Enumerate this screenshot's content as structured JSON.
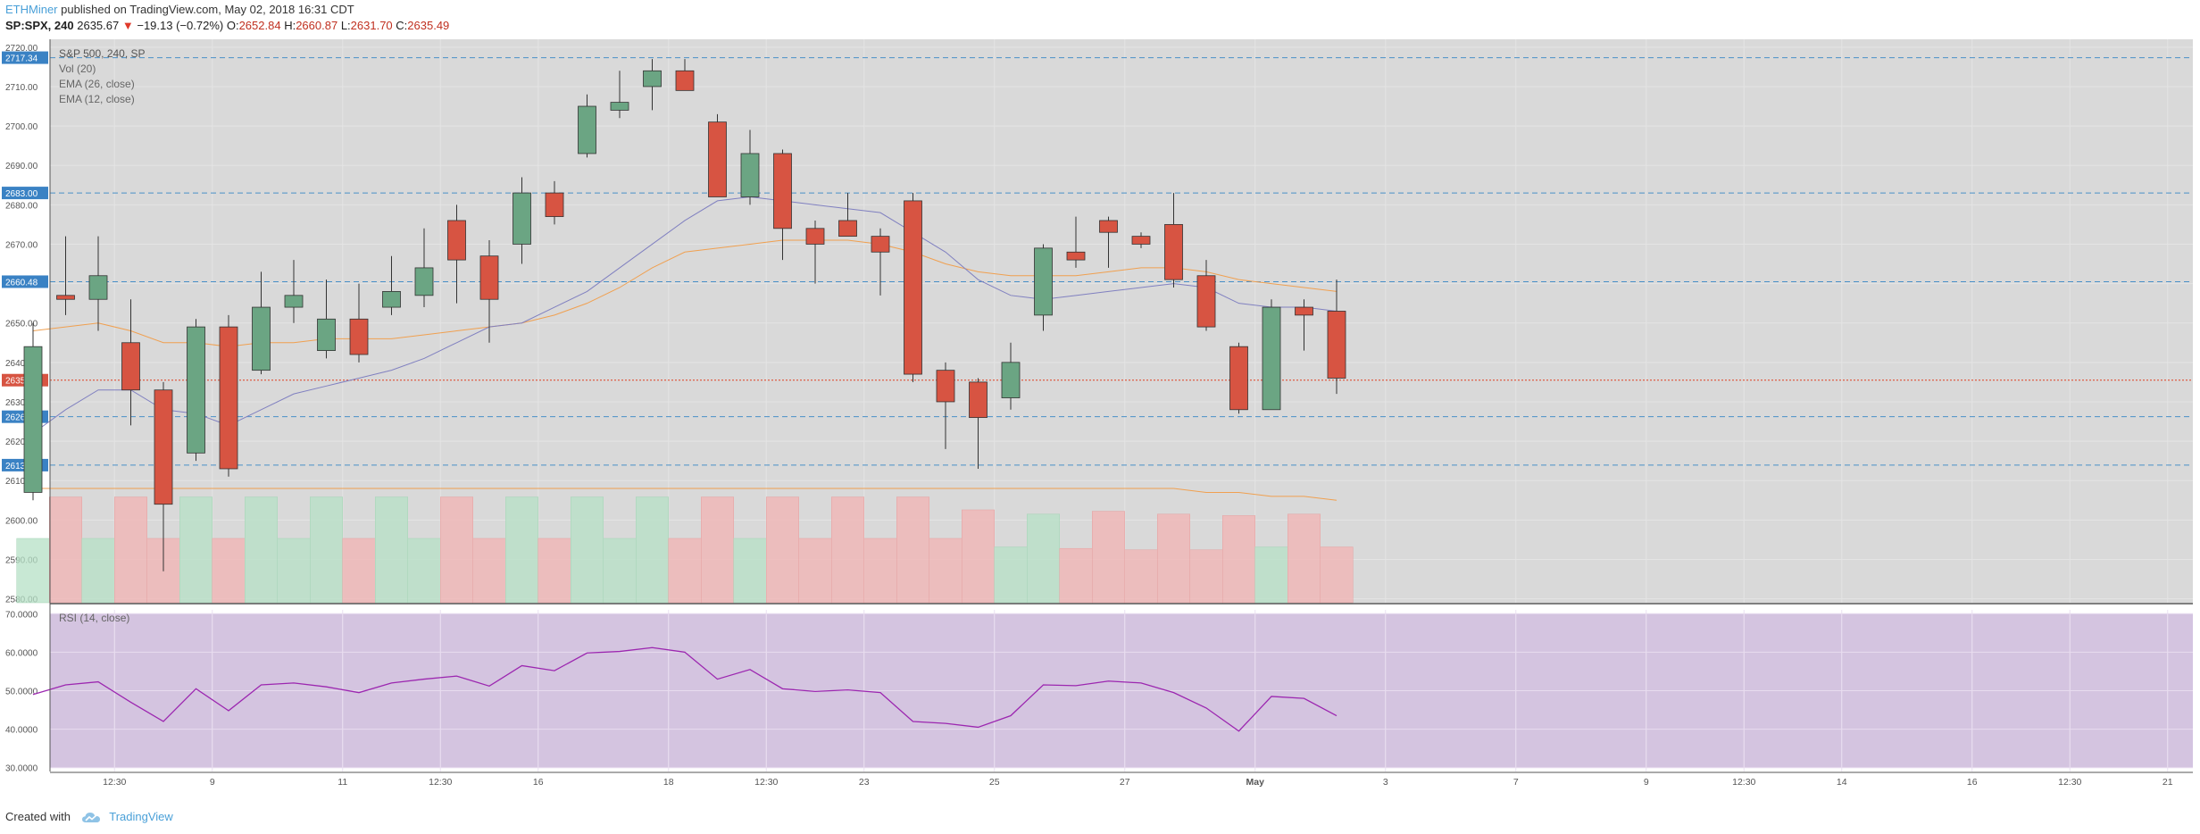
{
  "header": {
    "author": "ETHMiner",
    "published_text": "published on TradingView.com, May 02, 2018 16:31 CDT",
    "symbol": "SP:SPX, 240",
    "last": "2635.67",
    "change": "−19.13 (−0.72%)",
    "o_label": "O:",
    "o": "2652.84",
    "h_label": "H:",
    "h": "2660.87",
    "l_label": "L:",
    "l": "2631.70",
    "c_label": "C:",
    "c": "2635.49"
  },
  "legend": {
    "title": "S&P 500, 240, SP",
    "items": [
      "Vol (20)",
      "EMA (26, close)",
      "EMA (12, close)"
    ]
  },
  "rsi_label": "RSI (14, close)",
  "footer": {
    "created": "Created with",
    "brand": "TradingView"
  },
  "colors": {
    "up": "#6ba583",
    "down": "#d75442",
    "bg": "#d9d9d9",
    "rsi_bg": "#d4c4e0",
    "rsi_line": "#9c27b0",
    "ema26": "#f0a050",
    "ema12": "#8080c0",
    "hline": "#4a90c8",
    "price_line": "#e04020",
    "axis_label_bg": "#3a82c4"
  },
  "chart_data": {
    "type": "candlestick",
    "title": "S&P 500, 240, SP",
    "y_axis_ticks": [
      "2580.00",
      "2590.00",
      "2600.00",
      "2610.00",
      "2620.00",
      "2630.00",
      "2640.00",
      "2650.00",
      "2660.00",
      "2670.00",
      "2680.00",
      "2690.00",
      "2700.00",
      "2710.00",
      "2720.00"
    ],
    "ylim": [
      2579,
      2722
    ],
    "x_ticks": [
      {
        "label": "12:30",
        "bar": 2.5
      },
      {
        "label": "9",
        "bar": 5.5
      },
      {
        "label": "11",
        "bar": 9.5
      },
      {
        "label": "12:30",
        "bar": 12.5
      },
      {
        "label": "16",
        "bar": 15.5
      },
      {
        "label": "18",
        "bar": 19.5
      },
      {
        "label": "12:30",
        "bar": 22.5
      },
      {
        "label": "23",
        "bar": 25.5
      },
      {
        "label": "25",
        "bar": 29.5
      },
      {
        "label": "27",
        "bar": 33.5
      },
      {
        "label": "May",
        "bar": 37.5
      },
      {
        "label": "3",
        "bar": 41.5
      },
      {
        "label": "7",
        "bar": 45.5
      },
      {
        "label": "9",
        "bar": 49.5
      },
      {
        "label": "12:30",
        "bar": 52.5
      },
      {
        "label": "14",
        "bar": 55.5
      },
      {
        "label": "16",
        "bar": 59.5
      },
      {
        "label": "12:30",
        "bar": 62.5
      },
      {
        "label": "21",
        "bar": 65.5
      }
    ],
    "candles": [
      {
        "o": 2607,
        "h": 2650,
        "l": 2605,
        "c": 2644
      },
      {
        "o": 2657,
        "h": 2672,
        "l": 2652,
        "c": 2656
      },
      {
        "o": 2656,
        "h": 2672,
        "l": 2648,
        "c": 2662
      },
      {
        "o": 2645,
        "h": 2656,
        "l": 2624,
        "c": 2633
      },
      {
        "o": 2633,
        "h": 2635,
        "l": 2587,
        "c": 2604
      },
      {
        "o": 2617,
        "h": 2651,
        "l": 2615,
        "c": 2649
      },
      {
        "o": 2649,
        "h": 2652,
        "l": 2611,
        "c": 2613
      },
      {
        "o": 2638,
        "h": 2663,
        "l": 2637,
        "c": 2654
      },
      {
        "o": 2654,
        "h": 2666,
        "l": 2650,
        "c": 2657
      },
      {
        "o": 2643,
        "h": 2661,
        "l": 2641,
        "c": 2651
      },
      {
        "o": 2651,
        "h": 2660,
        "l": 2640,
        "c": 2642
      },
      {
        "o": 2654,
        "h": 2667,
        "l": 2652,
        "c": 2658
      },
      {
        "o": 2657,
        "h": 2674,
        "l": 2654,
        "c": 2664
      },
      {
        "o": 2676,
        "h": 2680,
        "l": 2655,
        "c": 2666
      },
      {
        "o": 2667,
        "h": 2671,
        "l": 2645,
        "c": 2656
      },
      {
        "o": 2670,
        "h": 2687,
        "l": 2665,
        "c": 2683
      },
      {
        "o": 2683,
        "h": 2686,
        "l": 2675,
        "c": 2677
      },
      {
        "o": 2693,
        "h": 2708,
        "l": 2692,
        "c": 2705
      },
      {
        "o": 2704,
        "h": 2714,
        "l": 2702,
        "c": 2706
      },
      {
        "o": 2710,
        "h": 2717,
        "l": 2704,
        "c": 2714
      },
      {
        "o": 2714,
        "h": 2717,
        "l": 2709,
        "c": 2709
      },
      {
        "o": 2701,
        "h": 2703,
        "l": 2682,
        "c": 2682
      },
      {
        "o": 2682,
        "h": 2699,
        "l": 2680,
        "c": 2693
      },
      {
        "o": 2693,
        "h": 2694,
        "l": 2666,
        "c": 2674
      },
      {
        "o": 2674,
        "h": 2676,
        "l": 2660,
        "c": 2670
      },
      {
        "o": 2676,
        "h": 2683,
        "l": 2672,
        "c": 2672
      },
      {
        "o": 2672,
        "h": 2674,
        "l": 2657,
        "c": 2668
      },
      {
        "o": 2681,
        "h": 2683,
        "l": 2635,
        "c": 2637
      },
      {
        "o": 2638,
        "h": 2640,
        "l": 2618,
        "c": 2630
      },
      {
        "o": 2635,
        "h": 2636,
        "l": 2613,
        "c": 2626
      },
      {
        "o": 2631,
        "h": 2645,
        "l": 2628,
        "c": 2640
      },
      {
        "o": 2652,
        "h": 2670,
        "l": 2648,
        "c": 2669
      },
      {
        "o": 2668,
        "h": 2677,
        "l": 2664,
        "c": 2666
      },
      {
        "o": 2676,
        "h": 2677,
        "l": 2664,
        "c": 2673
      },
      {
        "o": 2672,
        "h": 2673,
        "l": 2669,
        "c": 2670
      },
      {
        "o": 2675,
        "h": 2683,
        "l": 2659,
        "c": 2661
      },
      {
        "o": 2662,
        "h": 2666,
        "l": 2648,
        "c": 2649
      },
      {
        "o": 2644,
        "h": 2645,
        "l": 2627,
        "c": 2628
      },
      {
        "o": 2628,
        "h": 2656,
        "l": 2628,
        "c": 2654
      },
      {
        "o": 2654,
        "h": 2656,
        "l": 2643,
        "c": 2652
      },
      {
        "o": 2653,
        "h": 2661,
        "l": 2632,
        "c": 2636
      }
    ],
    "volume_relative": [
      0.45,
      0.74,
      0.45,
      0.74,
      0.45,
      0.74,
      0.45,
      0.74,
      0.45,
      0.74,
      0.45,
      0.74,
      0.45,
      0.74,
      0.45,
      0.74,
      0.45,
      0.74,
      0.45,
      0.74,
      0.45,
      0.74,
      0.45,
      0.74,
      0.45,
      0.74,
      0.45,
      0.74,
      0.45,
      0.65,
      0.39,
      0.62,
      0.38,
      0.64,
      0.37,
      0.62,
      0.37,
      0.61,
      0.39,
      0.62,
      0.39
    ],
    "ema26": [
      2648,
      2649,
      2650,
      2648,
      2645,
      2645,
      2644,
      2645,
      2645,
      2646,
      2646,
      2646,
      2647,
      2648,
      2649,
      2650,
      2652,
      2655,
      2659,
      2664,
      2668,
      2669,
      2670,
      2671,
      2671,
      2671,
      2670,
      2668,
      2665,
      2663,
      2662,
      2662,
      2662,
      2663,
      2664,
      2664,
      2663,
      2661,
      2660,
      2659,
      2658
    ],
    "ema12": [
      2622,
      2628,
      2633,
      2633,
      2628,
      2627,
      2624,
      2628,
      2632,
      2634,
      2636,
      2638,
      2641,
      2645,
      2649,
      2650,
      2654,
      2658,
      2664,
      2670,
      2676,
      2681,
      2682,
      2681,
      2680,
      2679,
      2678,
      2673,
      2668,
      2661,
      2657,
      2656,
      2657,
      2658,
      2659,
      2660,
      2659,
      2655,
      2654,
      2654,
      2653
    ],
    "vol_ma": [
      2608,
      2608,
      2608,
      2608,
      2608,
      2608,
      2608,
      2608,
      2608,
      2608,
      2608,
      2608,
      2608,
      2608,
      2608,
      2608,
      2608,
      2608,
      2608,
      2608,
      2608,
      2608,
      2608,
      2608,
      2608,
      2608,
      2608,
      2608,
      2608,
      2608,
      2608,
      2608,
      2608,
      2608,
      2608,
      2608,
      2607,
      2607,
      2606,
      2606,
      2605
    ],
    "horizontal_levels": [
      {
        "price": 2717.34,
        "label": "2717.34"
      },
      {
        "price": 2683.0,
        "label": "2683.00"
      },
      {
        "price": 2660.48,
        "label": "2660.48"
      },
      {
        "price": 2626.21,
        "label": "2626.21"
      },
      {
        "price": 2613.92,
        "label": "2613.92"
      }
    ],
    "last_price": {
      "price": 2635.49,
      "label": "2635.49"
    },
    "rsi": {
      "label": "RSI (14, close)",
      "ticks": [
        "30.0000",
        "40.0000",
        "50.0000",
        "60.0000",
        "70.0000"
      ],
      "ylim": [
        29,
        71
      ],
      "values": [
        49,
        51.5,
        52.3,
        47,
        42,
        50.5,
        44.8,
        51.5,
        52,
        51,
        49.5,
        52,
        53,
        53.8,
        51.2,
        56.5,
        55.2,
        59.8,
        60.2,
        61.2,
        60,
        53,
        55.5,
        50.5,
        49.8,
        50.2,
        49.5,
        42,
        41.5,
        40.5,
        43.5,
        51.5,
        51.3,
        52.5,
        52,
        49.5,
        45.5,
        39.5,
        48.5,
        48,
        43.5
      ]
    }
  }
}
